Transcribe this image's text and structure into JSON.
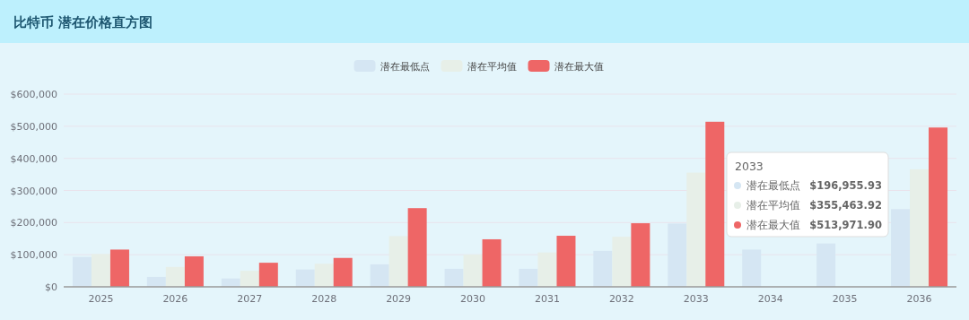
{
  "chart_data": {
    "type": "bar",
    "title": "比特币 潜在价格直方图",
    "categories": [
      "2025",
      "2026",
      "2027",
      "2028",
      "2029",
      "2030",
      "2031",
      "2032",
      "2033",
      "2034",
      "2035",
      "2036"
    ],
    "series": [
      {
        "name": "潜在最低点",
        "color": "#d5e6f3",
        "values": [
          93000,
          31000,
          26000,
          54000,
          70000,
          56000,
          56000,
          112000,
          196955.93,
          116000,
          135000,
          242000
        ]
      },
      {
        "name": "潜在平均值",
        "color": "#e7efe8",
        "values": [
          102000,
          62000,
          50000,
          72000,
          158000,
          100000,
          107000,
          156000,
          355463.92,
          null,
          null,
          366000
        ]
      },
      {
        "name": "潜在最大值",
        "color": "#ee6666",
        "values": [
          116000,
          95000,
          75000,
          90000,
          245000,
          148000,
          159000,
          198000,
          513971.9,
          null,
          null,
          496000
        ]
      }
    ],
    "ylim": [
      0,
      600000
    ],
    "yticks": [
      {
        "value": 0,
        "label": "$0"
      },
      {
        "value": 100000,
        "label": "$100,000"
      },
      {
        "value": 200000,
        "label": "$200,000"
      },
      {
        "value": 300000,
        "label": "$300,000"
      },
      {
        "value": 400000,
        "label": "$400,000"
      },
      {
        "value": 500000,
        "label": "$500,000"
      },
      {
        "value": 600000,
        "label": "$600,000"
      }
    ],
    "grid": "y",
    "legend": "top",
    "annotations": [
      "2033",
      "潜在最低点",
      "$196,955.93",
      "潜在平均值",
      "$355,463.92",
      "潜在最大值",
      "$513,971.90"
    ]
  }
}
